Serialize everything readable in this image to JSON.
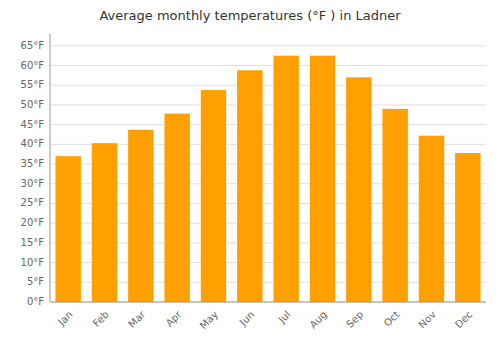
{
  "chart_data": {
    "type": "bar",
    "title": "Average monthly temperatures (°F ) in Ladner",
    "categories": [
      "Jan",
      "Feb",
      "Mar",
      "Apr",
      "May",
      "Jun",
      "Jul",
      "Aug",
      "Sep",
      "Oct",
      "Nov",
      "Dec"
    ],
    "values": [
      37.0,
      40.3,
      43.7,
      47.8,
      53.8,
      58.8,
      62.5,
      62.5,
      57.0,
      49.0,
      42.2,
      37.8
    ],
    "color": "#FFA000",
    "ylim": [
      0,
      68
    ],
    "yticks": [
      {
        "value": 0,
        "label": "0°F"
      },
      {
        "value": 5,
        "label": "5°F"
      },
      {
        "value": 10,
        "label": "10°F"
      },
      {
        "value": 15,
        "label": "15°F"
      },
      {
        "value": 20,
        "label": "20°F"
      },
      {
        "value": 25,
        "label": "25°F"
      },
      {
        "value": 30,
        "label": "30°F"
      },
      {
        "value": 35,
        "label": "35°F"
      },
      {
        "value": 40,
        "label": "40°F"
      },
      {
        "value": 45,
        "label": "45°F"
      },
      {
        "value": 50,
        "label": "50°F"
      },
      {
        "value": 55,
        "label": "55°F"
      },
      {
        "value": 60,
        "label": "60°F"
      },
      {
        "value": 65,
        "label": "65°F"
      }
    ],
    "grid": true
  }
}
